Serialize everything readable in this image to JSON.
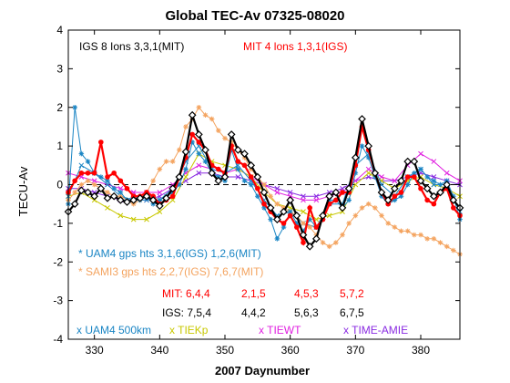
{
  "chart_data": {
    "type": "line",
    "title": "Global TEC-Av 07325-08020",
    "xlabel": "2007 Daynumber",
    "ylabel": "TECU-Av",
    "xlim": [
      326,
      386
    ],
    "ylim": [
      -4,
      4
    ],
    "xticks": [
      330,
      340,
      350,
      360,
      370,
      380
    ],
    "yticks": [
      -4,
      -3,
      -2,
      -1,
      0,
      1,
      2,
      3,
      4
    ],
    "zero_line": "dashed",
    "grid": false,
    "legend_placement": "bottom",
    "series": [
      {
        "name": "IGS 8 Ions 3,3,1(MIT)",
        "color": "#000000",
        "marker": "diamond",
        "x": [
          326,
          327,
          328,
          329,
          330,
          331,
          332,
          333,
          334,
          335,
          336,
          337,
          338,
          339,
          340,
          341,
          342,
          343,
          344,
          345,
          346,
          347,
          348,
          349,
          350,
          351,
          352,
          353,
          354,
          355,
          356,
          357,
          358,
          359,
          360,
          361,
          362,
          363,
          364,
          365,
          366,
          367,
          368,
          369,
          370,
          371,
          372,
          373,
          374,
          375,
          376,
          377,
          378,
          379,
          380,
          381,
          382,
          383,
          384,
          385,
          386
        ],
        "y": [
          -0.7,
          -0.5,
          -0.15,
          -0.2,
          -0.3,
          -0.1,
          -0.35,
          -0.3,
          -0.4,
          -0.45,
          -0.4,
          -0.35,
          -0.3,
          -0.4,
          -0.55,
          -0.35,
          -0.1,
          0.2,
          0.85,
          1.8,
          1.3,
          0.9,
          0.3,
          0.1,
          0.2,
          1.3,
          0.9,
          0.8,
          0.5,
          0.2,
          -0.2,
          -0.6,
          -0.9,
          -0.7,
          -0.4,
          -0.8,
          -1.3,
          -1.6,
          -1.4,
          -0.8,
          -0.3,
          -0.2,
          -0.6,
          -0.1,
          0.7,
          1.7,
          1.0,
          0.3,
          -0.2,
          -0.4,
          -0.1,
          0.1,
          0.6,
          0.6,
          0.1,
          -0.1,
          -0.3,
          -0.2,
          0.0,
          -0.4,
          -0.6
        ]
      },
      {
        "name": "MIT 4 lons 1,3,1(IGS)",
        "color": "#ff0000",
        "marker": "dot",
        "x": [
          326,
          327,
          328,
          329,
          330,
          331,
          332,
          333,
          334,
          335,
          336,
          337,
          338,
          339,
          340,
          341,
          342,
          343,
          344,
          345,
          346,
          347,
          348,
          349,
          350,
          351,
          352,
          353,
          354,
          355,
          356,
          357,
          358,
          359,
          360,
          361,
          362,
          363,
          364,
          365,
          366,
          367,
          368,
          369,
          370,
          371,
          372,
          373,
          374,
          375,
          376,
          377,
          378,
          379,
          380,
          381,
          382,
          383,
          384,
          385,
          386
        ],
        "y": [
          -0.2,
          0.1,
          0.3,
          0.3,
          0.3,
          1.1,
          0.2,
          0.3,
          0.1,
          -0.1,
          -0.3,
          -0.3,
          -0.2,
          -0.3,
          -0.5,
          -0.4,
          -0.3,
          0.2,
          0.7,
          1.3,
          1.1,
          0.9,
          0.5,
          0.4,
          0.3,
          1.0,
          0.6,
          0.5,
          0.2,
          -0.1,
          -0.5,
          -0.7,
          -0.9,
          -1.0,
          -0.8,
          -1.1,
          -1.5,
          -0.6,
          -1.1,
          -0.9,
          -0.5,
          -0.4,
          -0.2,
          -0.2,
          0.5,
          1.5,
          0.9,
          0.3,
          -0.2,
          -0.5,
          -0.3,
          -0.2,
          0.2,
          0.2,
          -0.1,
          -0.4,
          -0.5,
          -0.2,
          -0.1,
          -0.6,
          -0.8
        ]
      },
      {
        "name": "UAM4 gps hts 3,1,6(IGS) 1,2,6(MIT)",
        "color": "#1a85c4",
        "marker": "star",
        "x": [
          326,
          327,
          328,
          329,
          330,
          331,
          332,
          333,
          334,
          335,
          336,
          337,
          338,
          339,
          340,
          341,
          342,
          343,
          344,
          345,
          346,
          347,
          348,
          349,
          350,
          351,
          352,
          353,
          354,
          355,
          356,
          357,
          358,
          359,
          360,
          361,
          362,
          363,
          364,
          365,
          366,
          367,
          368,
          369,
          370,
          371,
          372,
          373,
          374,
          375,
          376,
          377,
          378,
          379,
          380,
          381,
          382,
          383,
          384,
          385,
          386
        ],
        "y": [
          -0.5,
          2.0,
          0.8,
          0.6,
          0.3,
          0.2,
          0.1,
          -0.1,
          -0.2,
          -0.4,
          -0.3,
          -0.4,
          -0.3,
          -0.5,
          -0.4,
          -0.3,
          -0.2,
          0.0,
          0.4,
          1.1,
          0.8,
          0.6,
          0.3,
          0.2,
          0.1,
          0.9,
          0.4,
          0.1,
          0.0,
          -0.3,
          -0.6,
          -0.9,
          -1.4,
          -1.1,
          -0.7,
          -1.0,
          -1.2,
          -0.9,
          -1.1,
          -0.9,
          -0.4,
          -0.4,
          -0.6,
          -0.4,
          0.3,
          1.0,
          0.7,
          0.2,
          -0.3,
          -0.5,
          -0.4,
          -0.3,
          0.0,
          0.3,
          0.4,
          0.2,
          0.1,
          0.0,
          0.1,
          -0.3,
          -0.9
        ]
      },
      {
        "name": "SAMI3 gps hts 2,2,7(IGS) 7,6,7(MIT)",
        "color": "#f4a460",
        "marker": "star",
        "x": [
          326,
          327,
          328,
          329,
          330,
          331,
          332,
          333,
          334,
          335,
          336,
          337,
          338,
          339,
          340,
          341,
          342,
          343,
          344,
          345,
          346,
          347,
          348,
          349,
          350,
          351,
          352,
          353,
          354,
          355,
          356,
          357,
          358,
          359,
          360,
          361,
          362,
          363,
          364,
          365,
          366,
          367,
          368,
          369,
          370,
          371,
          372,
          373,
          374,
          375,
          376,
          377,
          378,
          379,
          380,
          381,
          382,
          383,
          384,
          385,
          386
        ],
        "y": [
          -0.4,
          -0.2,
          0.0,
          0.1,
          0.0,
          -0.1,
          -0.2,
          -0.3,
          -0.3,
          -0.4,
          -0.5,
          -0.4,
          -0.2,
          0.1,
          0.4,
          0.6,
          0.6,
          0.9,
          1.5,
          1.7,
          2.0,
          1.8,
          1.7,
          1.4,
          1.2,
          1.1,
          0.9,
          0.7,
          0.4,
          0.2,
          0.0,
          -0.3,
          -0.5,
          -0.6,
          -0.7,
          -0.8,
          -1.0,
          -1.1,
          -1.3,
          -1.5,
          -1.6,
          -1.5,
          -1.3,
          -1.0,
          -0.8,
          -0.6,
          -0.5,
          -0.6,
          -0.8,
          -1.0,
          -1.1,
          -1.2,
          -1.2,
          -1.3,
          -1.3,
          -1.4,
          -1.4,
          -1.5,
          -1.6,
          -1.7,
          -1.8
        ]
      },
      {
        "name": "UAM4 500km",
        "color": "#1a85c4",
        "marker": "x",
        "x": [
          326,
          328,
          330,
          332,
          334,
          336,
          338,
          340,
          342,
          344,
          346,
          348,
          350,
          352,
          354,
          356,
          358,
          360,
          362,
          364,
          366,
          368,
          370,
          372,
          374,
          376,
          378,
          380,
          382,
          384,
          386
        ],
        "y": [
          -0.3,
          0.5,
          0.3,
          0.0,
          -0.3,
          -0.4,
          -0.4,
          -0.4,
          -0.1,
          0.6,
          1.0,
          0.4,
          0.3,
          0.5,
          0.1,
          -0.4,
          -0.8,
          -0.7,
          -1.0,
          -1.1,
          -0.5,
          -0.5,
          0.5,
          0.8,
          0.0,
          -0.3,
          0.2,
          0.4,
          0.0,
          0.0,
          -0.7
        ]
      },
      {
        "name": "TIEKp",
        "color": "#c8c800",
        "marker": "x",
        "x": [
          326,
          328,
          330,
          332,
          334,
          336,
          338,
          340,
          342,
          344,
          346,
          348,
          350,
          352,
          354,
          356,
          358,
          360,
          362,
          364,
          366,
          368,
          370,
          372,
          374,
          376,
          378,
          380,
          382,
          384,
          386
        ],
        "y": [
          -0.3,
          -0.2,
          -0.4,
          -0.6,
          -0.8,
          -0.9,
          -0.9,
          -0.7,
          -0.4,
          0.2,
          0.8,
          0.6,
          0.5,
          0.4,
          0.2,
          -0.2,
          -0.5,
          -0.6,
          -0.7,
          -0.9,
          -0.8,
          -0.7,
          0.0,
          0.3,
          0.1,
          -0.1,
          0.1,
          0.2,
          0.0,
          -0.1,
          -0.3
        ]
      },
      {
        "name": "TIEWT",
        "color": "#e020e0",
        "marker": "x",
        "x": [
          326,
          328,
          330,
          332,
          334,
          336,
          338,
          340,
          342,
          344,
          346,
          348,
          350,
          352,
          354,
          356,
          358,
          360,
          362,
          364,
          366,
          368,
          370,
          372,
          374,
          376,
          378,
          380,
          382,
          384,
          386
        ],
        "y": [
          0.3,
          0.2,
          0.1,
          0.0,
          -0.1,
          -0.2,
          -0.2,
          -0.2,
          0.0,
          0.3,
          0.5,
          0.4,
          0.3,
          0.4,
          0.2,
          0.0,
          -0.2,
          -0.3,
          -0.4,
          -0.4,
          -0.3,
          -0.2,
          0.1,
          0.4,
          0.2,
          0.1,
          0.5,
          0.8,
          0.6,
          0.3,
          0.1
        ]
      },
      {
        "name": "TIME-AMIE",
        "color": "#8a2be2",
        "marker": "x",
        "x": [
          326,
          328,
          330,
          332,
          334,
          336,
          338,
          340,
          342,
          344,
          346,
          348,
          350,
          352,
          354,
          356,
          358,
          360,
          362,
          364,
          366,
          368,
          370,
          372,
          374,
          376,
          378,
          380,
          382,
          384,
          386
        ],
        "y": [
          -0.1,
          -0.1,
          -0.2,
          -0.3,
          -0.4,
          -0.4,
          -0.4,
          -0.3,
          -0.1,
          0.1,
          0.3,
          0.3,
          0.2,
          0.2,
          0.1,
          0.0,
          -0.1,
          -0.2,
          -0.3,
          -0.3,
          -0.2,
          -0.1,
          0.1,
          0.2,
          0.1,
          0.1,
          0.2,
          0.3,
          0.2,
          0.1,
          0.0
        ]
      }
    ],
    "annotations": {
      "igs_title": "IGS 8 Ions 3,3,1(MIT)",
      "mit_title": "MIT 4 lons 1,3,1(IGS)",
      "uam_gps": "* UAM4 gps hts 3,1,6(IGS) 1,2,6(MIT)",
      "sami_gps": "* SAMI3 gps hts 2,2,7(IGS) 7,6,7(MIT)",
      "mit_rank_label": "MIT: 6,4,4",
      "mit_rank_values": [
        "2,1,5",
        "4,5,3",
        "5,7,2"
      ],
      "igs_rank_label": "IGS: 7,5,4",
      "igs_rank_values": [
        "4,4,2",
        "5,6,3",
        "6,7,5"
      ],
      "legend_uam500": "x UAM4 500km",
      "legend_tiekp": "x TIEKp",
      "legend_tiewt": "x TIEWT",
      "legend_amie": "x TIME-AMIE"
    }
  }
}
